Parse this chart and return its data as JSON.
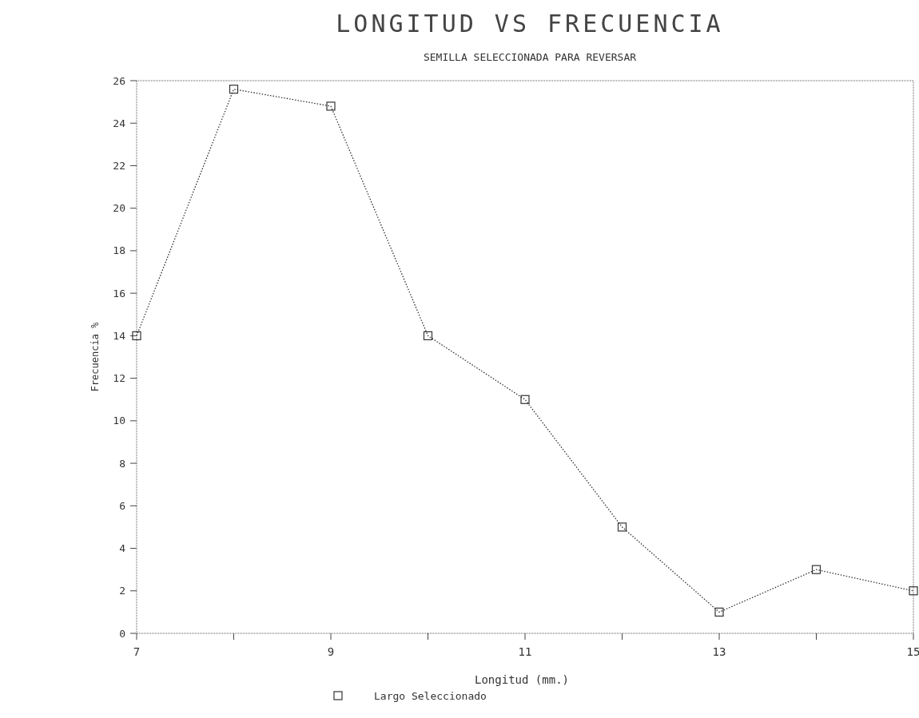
{
  "chart_data": {
    "type": "line",
    "title": "LONGITUD VS FRECUENCIA",
    "subtitle": "SEMILLA SELECCIONADA PARA REVERSAR",
    "xlabel": "Longitud (mm.)",
    "ylabel": "Frecuencia %",
    "x": [
      7,
      8,
      9,
      10,
      11,
      12,
      13,
      14,
      15
    ],
    "series": [
      {
        "name": "Largo Seleccionado",
        "color": "#333333",
        "values": [
          14,
          25.6,
          24.8,
          14,
          11,
          5,
          1,
          3,
          2
        ]
      }
    ],
    "xlim": [
      7,
      15
    ],
    "xticks": [
      7,
      {
        "value": 8,
        "label": null
      },
      9,
      {
        "value": 10,
        "label": null
      },
      11,
      {
        "value": 12,
        "label": null
      },
      13,
      {
        "value": 14,
        "label": null
      },
      15
    ],
    "ylim": [
      0,
      26
    ],
    "yticks": [
      0,
      2,
      4,
      6,
      8,
      10,
      12,
      14,
      16,
      18,
      20,
      22,
      24,
      26
    ],
    "marker": "square",
    "line_style": "dotted",
    "legend": "bottom"
  }
}
